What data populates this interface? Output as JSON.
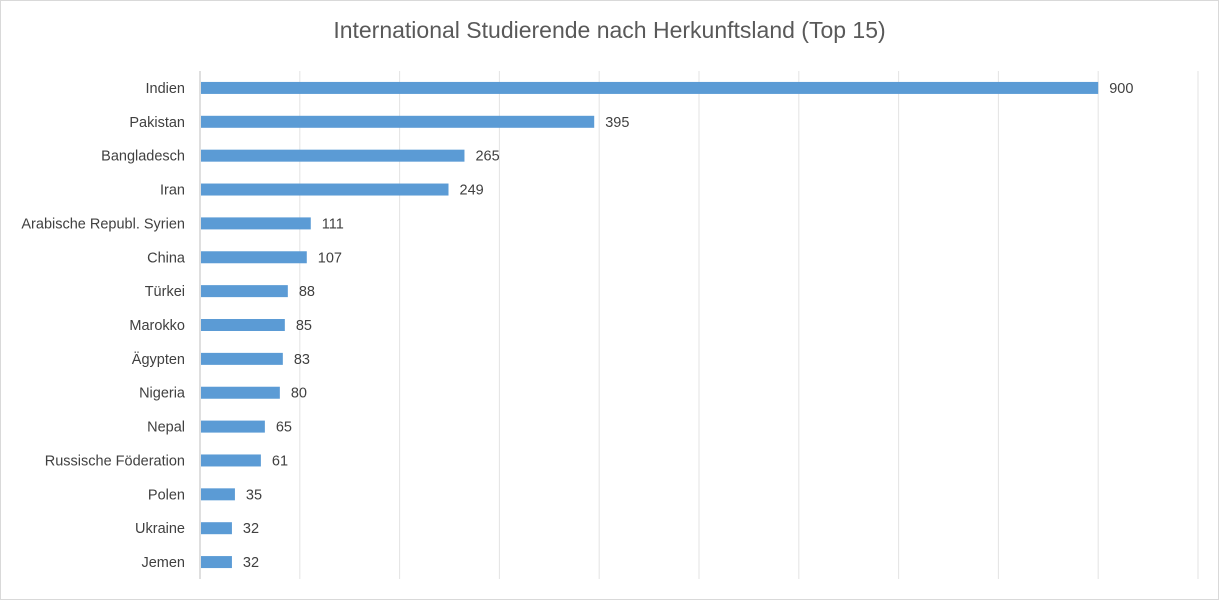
{
  "chart_data": {
    "type": "bar",
    "orientation": "horizontal",
    "title": "International Studierende nach Herkunftsland (Top 15)",
    "xlabel": "",
    "ylabel": "",
    "xlim": [
      0,
      1000
    ],
    "grid": true,
    "legend": "none",
    "bar_color": "#5b9bd5",
    "categories": [
      "Indien",
      "Pakistan",
      "Bangladesch",
      "Iran",
      "Arabische Republ. Syrien",
      "China",
      "Türkei",
      "Marokko",
      "Ägypten",
      "Nigeria",
      "Nepal",
      "Russische Föderation",
      "Polen",
      "Ukraine",
      "Jemen"
    ],
    "values": [
      900,
      395,
      265,
      249,
      111,
      107,
      88,
      85,
      83,
      80,
      65,
      61,
      35,
      32,
      32
    ],
    "data_labels": [
      "900",
      "395",
      "265",
      "249",
      "111",
      "107",
      "88",
      "85",
      "83",
      "80",
      "65",
      "61",
      "35",
      "32",
      "32"
    ]
  }
}
